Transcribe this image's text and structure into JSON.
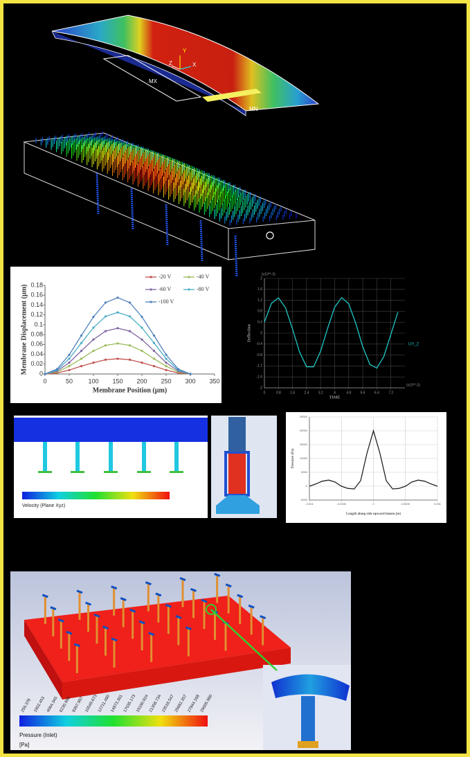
{
  "panels": {
    "beam": {
      "max_label": "MX",
      "min_label": "MN",
      "axes": [
        "Y",
        "Z",
        "X"
      ]
    },
    "velocity": {
      "title": "Velocity (Plane Xyz)"
    },
    "pressure": {
      "title": "Pressure (Inlet)",
      "unit": "[Pa]",
      "legend": [
        "259.378",
        "1902.453",
        "4064.345",
        "6230.998",
        "8397.997",
        "10549.673",
        "12711.490",
        "14873.301",
        "17035.173",
        "19190.924",
        "21358.734",
        "23518.547",
        "25682.357",
        "27844.168",
        "29005.980"
      ]
    }
  },
  "chart_data": [
    {
      "type": "line",
      "x_label": "Membrane Position (µm)",
      "y_label": "Membrane Displacement (µm)",
      "x": [
        0,
        25,
        50,
        75,
        100,
        125,
        150,
        175,
        200,
        225,
        250,
        275,
        300
      ],
      "xlim": [
        0,
        350
      ],
      "xticks": [
        0,
        50,
        100,
        150,
        200,
        250,
        300,
        350
      ],
      "ylim": [
        0,
        0.18
      ],
      "yticks": [
        0,
        0.02,
        0.04,
        0.06,
        0.08,
        0.1,
        0.12,
        0.14,
        0.16,
        0.18
      ],
      "markers": true,
      "grid": false,
      "series": [
        {
          "name": "-20 V",
          "color": "#c0504d",
          "values": [
            0,
            0.002,
            0.008,
            0.016,
            0.023,
            0.029,
            0.031,
            0.029,
            0.023,
            0.016,
            0.008,
            0.002,
            0
          ]
        },
        {
          "name": "-40 V",
          "color": "#9bbb59",
          "values": [
            0,
            0.004,
            0.016,
            0.031,
            0.047,
            0.058,
            0.062,
            0.058,
            0.047,
            0.031,
            0.016,
            0.004,
            0
          ]
        },
        {
          "name": "-60 V",
          "color": "#8064a2",
          "values": [
            0,
            0.006,
            0.023,
            0.047,
            0.07,
            0.087,
            0.093,
            0.087,
            0.07,
            0.047,
            0.023,
            0.006,
            0
          ]
        },
        {
          "name": "-80 V",
          "color": "#4bacc6",
          "values": [
            0,
            0.008,
            0.031,
            0.063,
            0.094,
            0.117,
            0.125,
            0.117,
            0.094,
            0.063,
            0.031,
            0.008,
            0
          ]
        },
        {
          "name": "-100 V",
          "color": "#4f81bd",
          "values": [
            0,
            0.01,
            0.039,
            0.078,
            0.116,
            0.145,
            0.155,
            0.145,
            0.116,
            0.078,
            0.039,
            0.01,
            0
          ]
        }
      ]
    },
    {
      "type": "line",
      "x_label": "TIME",
      "y_label": "Deflection",
      "y_note": "(x10**-3)",
      "x_note": "(x10**-3)",
      "x": [
        0,
        0.4,
        0.8,
        1.2,
        1.6,
        2,
        2.4,
        2.8,
        3.2,
        3.6,
        4,
        4.4,
        4.8,
        5.2,
        5.6,
        6,
        6.4,
        6.8,
        7.2,
        7.6
      ],
      "xlim": [
        0,
        8
      ],
      "xticks": [
        0,
        0.8,
        1.6,
        2.4,
        3.2,
        4,
        4.8,
        5.6,
        6.4,
        7.2
      ],
      "ylim": [
        -2,
        2
      ],
      "yticks": [
        -2,
        -1.6,
        -1.2,
        -0.8,
        -0.4,
        0,
        0.4,
        0.8,
        1.2,
        1.6,
        2
      ],
      "markers": false,
      "grid": true,
      "series": [
        {
          "name": "UY_2",
          "color": "#1fc8c8",
          "values": [
            0.4,
            1.09,
            1.29,
            0.93,
            0.15,
            -0.69,
            -1.23,
            -1.23,
            -0.66,
            0.18,
            0.95,
            1.3,
            1.07,
            0.36,
            -0.5,
            -1.14,
            -1.28,
            -0.85,
            -0.04,
            0.77
          ]
        }
      ]
    },
    {
      "type": "line",
      "x_label": "Length along side upward lumen (m)",
      "y_label": "Pressure (Pa)",
      "x": [
        -0.001,
        -0.0009,
        -0.0008,
        -0.0007,
        -0.0006,
        -0.0005,
        -0.0004,
        -0.0003,
        -0.0002,
        -0.0001,
        0,
        0.0001,
        0.0002,
        0.0003,
        0.0004,
        0.0005,
        0.0006,
        0.0007,
        0.0008,
        0.0009,
        0.001
      ],
      "xlim": [
        -0.001,
        0.001
      ],
      "xticks": [
        -0.001,
        -0.0005,
        0,
        0.0005,
        0.001
      ],
      "ylim": [
        -5000,
        25000
      ],
      "yticks": [
        -5000,
        0,
        5000,
        10000,
        15000,
        20000,
        25000
      ],
      "markers": false,
      "grid": true,
      "color": "#222",
      "values": [
        0,
        800,
        1800,
        2200,
        1500,
        0,
        -800,
        -1000,
        2000,
        12000,
        20000,
        12000,
        2000,
        -1000,
        -800,
        0,
        1500,
        2200,
        1800,
        800,
        0
      ]
    }
  ]
}
